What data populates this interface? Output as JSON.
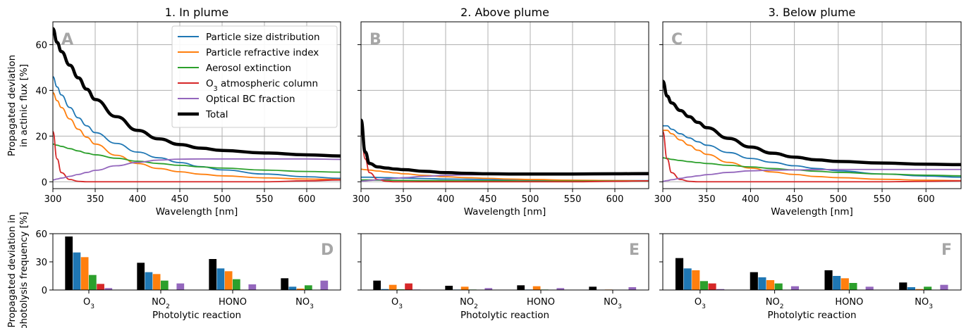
{
  "colors": {
    "psd": "#1f77b4",
    "refr": "#ff7f0e",
    "ext": "#2ca02c",
    "o3col": "#d62728",
    "bc": "#9467bd",
    "total": "#000000",
    "panel_letter": "#a6a6a6",
    "grid": "#b0b0b0"
  },
  "ylabel_top": [
    "Propagated deviation",
    "in actinic flux [%]"
  ],
  "ylabel_bottom": [
    "Propagated deviation in",
    "photolysis frequency [%]"
  ],
  "chart_data": [
    {
      "type": "line",
      "panel": "A",
      "title": "1. In plume",
      "xlabel": "Wavelength [nm]",
      "xlim": [
        300,
        640
      ],
      "ylim": [
        -3,
        70
      ],
      "xticks": [
        300,
        350,
        400,
        450,
        500,
        550,
        600
      ],
      "yticks": [
        0,
        20,
        40,
        60
      ],
      "grid": true,
      "legend": {
        "placement": "top-right",
        "entries": [
          "Particle size distribution",
          "Particle refractive index",
          "Aerosol extinction",
          "O3 atmospheric column",
          "Optical BC fraction",
          "Total"
        ]
      },
      "x": [
        300,
        305,
        310,
        320,
        330,
        340,
        350,
        375,
        400,
        425,
        450,
        475,
        500,
        550,
        600,
        640
      ],
      "series": [
        {
          "name": "Particle size distribution",
          "key": "psd",
          "values": [
            46,
            41.5,
            38,
            32.5,
            28,
            24.5,
            21.5,
            16.8,
            13,
            10.5,
            8.4,
            6.6,
            5.2,
            3.4,
            2.2,
            1.5
          ]
        },
        {
          "name": "Particle refractive index",
          "key": "refr",
          "values": [
            39,
            35.5,
            32.5,
            27.5,
            23,
            19.5,
            16.5,
            11.6,
            8,
            5.8,
            4.4,
            3.3,
            2.6,
            1.7,
            1.2,
            1
          ]
        },
        {
          "name": "Aerosol extinction",
          "key": "ext",
          "values": [
            16.5,
            16,
            15.5,
            14.5,
            13.5,
            12.5,
            11.8,
            10.3,
            9,
            8,
            7.2,
            6.5,
            6,
            5.1,
            4.5,
            4.2
          ]
        },
        {
          "name": "O3 atmospheric column",
          "key": "o3col",
          "values": [
            22,
            10,
            4,
            1,
            0.2,
            0,
            0,
            0,
            0,
            0,
            0,
            0,
            0,
            0,
            0.4,
            0.8
          ]
        },
        {
          "name": "Optical BC fraction",
          "key": "bc",
          "values": [
            0.8,
            1.2,
            1.6,
            2.4,
            3.2,
            4.1,
            5,
            7,
            8.5,
            9.5,
            9.9,
            10,
            10,
            10,
            10,
            9.8
          ]
        },
        {
          "name": "Total",
          "key": "total",
          "values": [
            67,
            61,
            57,
            51,
            45.5,
            40.5,
            36,
            28.5,
            22.5,
            18.8,
            16.3,
            14.7,
            13.7,
            12.6,
            11.8,
            11.3
          ]
        }
      ]
    },
    {
      "type": "line",
      "panel": "B",
      "title": "2. Above plume",
      "xlabel": "Wavelength [nm]",
      "xlim": [
        300,
        640
      ],
      "ylim": [
        -3,
        70
      ],
      "xticks": [
        300,
        350,
        400,
        450,
        500,
        550,
        600
      ],
      "yticks": [
        0,
        20,
        40,
        60
      ],
      "grid": true,
      "x": [
        300,
        305,
        310,
        320,
        330,
        340,
        350,
        375,
        400,
        425,
        450,
        475,
        500,
        550,
        600,
        640
      ],
      "series": [
        {
          "name": "Particle size distribution",
          "key": "psd",
          "values": [
            2,
            2,
            2,
            1.9,
            1.8,
            1.7,
            1.6,
            1.4,
            1.2,
            1.1,
            1,
            0.9,
            0.8,
            0.6,
            0.5,
            0.5
          ]
        },
        {
          "name": "Particle refractive index",
          "key": "refr",
          "values": [
            5.5,
            5.3,
            5.1,
            4.7,
            4.3,
            3.9,
            3.5,
            2.8,
            2.2,
            1.8,
            1.5,
            1.2,
            1,
            0.7,
            0.5,
            0.4
          ]
        },
        {
          "name": "Aerosol extinction",
          "key": "ext",
          "values": [
            0.8,
            0.8,
            0.8,
            0.7,
            0.7,
            0.6,
            0.6,
            0.5,
            0.5,
            0.4,
            0.4,
            0.4,
            0.3,
            0.3,
            0.3,
            0.3
          ]
        },
        {
          "name": "O3 atmospheric column",
          "key": "o3col",
          "values": [
            22,
            10,
            4,
            1,
            0.2,
            0,
            0,
            0,
            0,
            0,
            0,
            0,
            0,
            0,
            0.2,
            0.4
          ]
        },
        {
          "name": "Optical BC fraction",
          "key": "bc",
          "values": [
            0.3,
            0.4,
            0.6,
            0.9,
            1.2,
            1.5,
            1.8,
            2.4,
            2.8,
            3,
            3.1,
            3.1,
            3.1,
            3.1,
            3.1,
            3.1
          ]
        },
        {
          "name": "Total",
          "key": "total",
          "values": [
            27,
            13,
            8,
            6.5,
            6,
            5.6,
            5.3,
            4.6,
            4,
            3.7,
            3.5,
            3.4,
            3.4,
            3.4,
            3.5,
            3.6
          ]
        }
      ]
    },
    {
      "type": "line",
      "panel": "C",
      "title": "3. Below plume",
      "xlabel": "Wavelength [nm]",
      "xlim": [
        300,
        640
      ],
      "ylim": [
        -3,
        70
      ],
      "xticks": [
        300,
        350,
        400,
        450,
        500,
        550,
        600
      ],
      "yticks": [
        0,
        20,
        40,
        60
      ],
      "grid": true,
      "x": [
        300,
        305,
        310,
        320,
        330,
        340,
        350,
        375,
        400,
        425,
        450,
        475,
        500,
        550,
        600,
        640
      ],
      "series": [
        {
          "name": "Particle size distribution",
          "key": "psd",
          "values": [
            24.5,
            24.5,
            23,
            21,
            19.2,
            17.5,
            16,
            12.8,
            10.2,
            8.5,
            7,
            5.8,
            4.8,
            3.4,
            2.5,
            2
          ]
        },
        {
          "name": "Particle refractive index",
          "key": "refr",
          "values": [
            22.5,
            22.5,
            21,
            18.3,
            16,
            13.8,
            12,
            8.5,
            6,
            4.3,
            3.2,
            2.3,
            1.8,
            1.1,
            0.7,
            0.5
          ]
        },
        {
          "name": "Aerosol extinction",
          "key": "ext",
          "values": [
            10.5,
            10.2,
            9.8,
            9.3,
            8.8,
            8.4,
            8,
            7.2,
            6.5,
            5.8,
            5.2,
            4.6,
            4.1,
            3.4,
            2.9,
            2.6
          ]
        },
        {
          "name": "O3 atmospheric column",
          "key": "o3col",
          "values": [
            22,
            10,
            4,
            1,
            0.2,
            0,
            0,
            0,
            0,
            0,
            0,
            0,
            0,
            0,
            0.2,
            0.4
          ]
        },
        {
          "name": "Optical BC fraction",
          "key": "bc",
          "values": [
            0.2,
            0.5,
            0.9,
            1.5,
            2.1,
            2.6,
            3.1,
            4.1,
            4.8,
            5.1,
            5.2,
            5.3,
            5.4,
            5.4,
            5.4,
            5.4
          ]
        },
        {
          "name": "Total",
          "key": "total",
          "values": [
            44,
            37.5,
            34.5,
            31.2,
            28.5,
            26,
            23.7,
            19,
            15.2,
            12.5,
            10.8,
            9.6,
            8.9,
            8.2,
            7.7,
            7.5
          ]
        }
      ]
    },
    {
      "type": "bar",
      "panel": "D",
      "xlabel": "Photolytic reaction",
      "ylim": [
        0,
        60
      ],
      "yticks": [
        0,
        30,
        60
      ],
      "categories": [
        "O3",
        "NO2",
        "HONO",
        "NO3"
      ],
      "series": [
        {
          "key": "total",
          "values": [
            57,
            29,
            33,
            12.5
          ]
        },
        {
          "key": "psd",
          "values": [
            40,
            19,
            23,
            3.5
          ]
        },
        {
          "key": "refr",
          "values": [
            35,
            17,
            20,
            1.5
          ]
        },
        {
          "key": "ext",
          "values": [
            16,
            10,
            11.5,
            5
          ]
        },
        {
          "key": "o3col",
          "values": [
            6.5,
            0,
            0,
            0
          ]
        },
        {
          "key": "bc",
          "values": [
            2,
            7,
            6,
            10
          ]
        }
      ]
    },
    {
      "type": "bar",
      "panel": "E",
      "xlabel": "Photolytic reaction",
      "ylim": [
        0,
        60
      ],
      "yticks": [
        0,
        30,
        60
      ],
      "categories": [
        "O3",
        "NO2",
        "HONO",
        "NO3"
      ],
      "series": [
        {
          "key": "total",
          "values": [
            10,
            4.5,
            5,
            3.5
          ]
        },
        {
          "key": "psd",
          "values": [
            1,
            0.5,
            0.5,
            0.3
          ]
        },
        {
          "key": "refr",
          "values": [
            5.5,
            3.5,
            4,
            0.5
          ]
        },
        {
          "key": "ext",
          "values": [
            0.7,
            0.5,
            0.5,
            0.3
          ]
        },
        {
          "key": "o3col",
          "values": [
            7,
            0,
            0,
            0
          ]
        },
        {
          "key": "bc",
          "values": [
            0.5,
            2,
            2,
            3
          ]
        }
      ]
    },
    {
      "type": "bar",
      "panel": "F",
      "xlabel": "Photolytic reaction",
      "ylim": [
        0,
        60
      ],
      "yticks": [
        0,
        30,
        60
      ],
      "categories": [
        "O3",
        "NO2",
        "HONO",
        "NO3"
      ],
      "series": [
        {
          "key": "total",
          "values": [
            34,
            19,
            21,
            8
          ]
        },
        {
          "key": "psd",
          "values": [
            23,
            13.5,
            15,
            3
          ]
        },
        {
          "key": "refr",
          "values": [
            21,
            10.5,
            12.5,
            1
          ]
        },
        {
          "key": "ext",
          "values": [
            9.5,
            7,
            7.5,
            3.5
          ]
        },
        {
          "key": "o3col",
          "values": [
            7,
            0,
            0,
            0
          ]
        },
        {
          "key": "bc",
          "values": [
            1,
            4,
            3.5,
            5.5
          ]
        }
      ]
    }
  ]
}
